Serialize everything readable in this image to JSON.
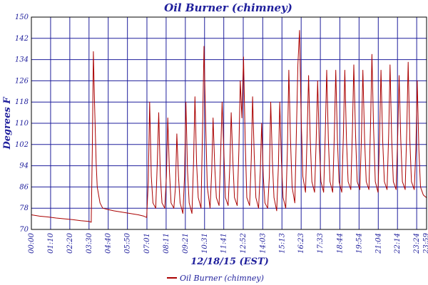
{
  "chart_data": {
    "type": "line",
    "title": "Oil Burner (chimney)",
    "xlabel": "12/18/15 (EST)",
    "ylabel": "Degrees F",
    "ylim": [
      70,
      150
    ],
    "y_ticks": [
      70,
      78,
      86,
      94,
      102,
      110,
      118,
      126,
      134,
      142,
      150
    ],
    "x_ticks": [
      "00:00",
      "01:10",
      "02:20",
      "03:30",
      "04:40",
      "05:50",
      "07:01",
      "08:11",
      "09:21",
      "10:31",
      "11:41",
      "12:52",
      "14:03",
      "15:13",
      "16:23",
      "17:33",
      "18:44",
      "19:54",
      "21:04",
      "22:14",
      "23:24",
      "23:59"
    ],
    "grid": true,
    "legend_position": "bottom",
    "colors": {
      "series": "#aa0000",
      "grid": "#1f1f9c",
      "text": "#1f1f9c",
      "axis": "#000000"
    },
    "series": [
      {
        "name": "Oil Burner (chimney)",
        "points": [
          [
            "00:00",
            75.5
          ],
          [
            "00:30",
            75
          ],
          [
            "01:00",
            74.7
          ],
          [
            "01:30",
            74.3
          ],
          [
            "02:00",
            74
          ],
          [
            "02:30",
            73.7
          ],
          [
            "03:00",
            73.3
          ],
          [
            "03:30",
            73
          ],
          [
            "03:38",
            72.7
          ],
          [
            "03:42",
            100
          ],
          [
            "03:46",
            137
          ],
          [
            "03:50",
            118
          ],
          [
            "03:56",
            95
          ],
          [
            "04:00",
            86
          ],
          [
            "04:10",
            80
          ],
          [
            "04:20",
            78
          ],
          [
            "04:40",
            77.5
          ],
          [
            "05:00",
            77
          ],
          [
            "05:30",
            76.5
          ],
          [
            "06:00",
            76
          ],
          [
            "06:30",
            75.5
          ],
          [
            "06:50",
            75
          ],
          [
            "07:00",
            74.5
          ],
          [
            "07:06",
            88
          ],
          [
            "07:11",
            118
          ],
          [
            "07:17",
            90
          ],
          [
            "07:23",
            80
          ],
          [
            "07:33",
            78
          ],
          [
            "07:39",
            96
          ],
          [
            "07:44",
            114
          ],
          [
            "07:50",
            90
          ],
          [
            "07:56",
            80
          ],
          [
            "08:06",
            78
          ],
          [
            "08:12",
            90
          ],
          [
            "08:17",
            112
          ],
          [
            "08:23",
            92
          ],
          [
            "08:29",
            80
          ],
          [
            "08:39",
            78
          ],
          [
            "08:45",
            86
          ],
          [
            "08:50",
            106
          ],
          [
            "08:56",
            90
          ],
          [
            "09:02",
            80
          ],
          [
            "09:12",
            76
          ],
          [
            "09:18",
            90
          ],
          [
            "09:23",
            118
          ],
          [
            "09:29",
            92
          ],
          [
            "09:35",
            80
          ],
          [
            "09:45",
            76
          ],
          [
            "09:51",
            96
          ],
          [
            "09:56",
            120
          ],
          [
            "10:02",
            95
          ],
          [
            "10:08",
            82
          ],
          [
            "10:18",
            78
          ],
          [
            "10:24",
            110
          ],
          [
            "10:29",
            139
          ],
          [
            "10:35",
            110
          ],
          [
            "10:41",
            86
          ],
          [
            "10:51",
            78
          ],
          [
            "10:57",
            92
          ],
          [
            "11:02",
            112
          ],
          [
            "11:08",
            94
          ],
          [
            "11:14",
            82
          ],
          [
            "11:24",
            79
          ],
          [
            "11:30",
            100
          ],
          [
            "11:35",
            118
          ],
          [
            "11:41",
            100
          ],
          [
            "11:47",
            82
          ],
          [
            "11:57",
            79
          ],
          [
            "12:03",
            94
          ],
          [
            "12:08",
            114
          ],
          [
            "12:14",
            96
          ],
          [
            "12:20",
            82
          ],
          [
            "12:30",
            79
          ],
          [
            "12:36",
            100
          ],
          [
            "12:41",
            126
          ],
          [
            "12:47",
            112
          ],
          [
            "12:53",
            135
          ],
          [
            "12:59",
            104
          ],
          [
            "13:05",
            82
          ],
          [
            "13:15",
            79
          ],
          [
            "13:21",
            96
          ],
          [
            "13:26",
            120
          ],
          [
            "13:32",
            98
          ],
          [
            "13:38",
            82
          ],
          [
            "13:48",
            78
          ],
          [
            "13:54",
            92
          ],
          [
            "13:59",
            110
          ],
          [
            "14:05",
            90
          ],
          [
            "14:11",
            80
          ],
          [
            "14:21",
            78
          ],
          [
            "14:27",
            90
          ],
          [
            "14:32",
            118
          ],
          [
            "14:38",
            96
          ],
          [
            "14:44",
            82
          ],
          [
            "14:54",
            77
          ],
          [
            "15:00",
            94
          ],
          [
            "15:05",
            118
          ],
          [
            "15:11",
            96
          ],
          [
            "15:17",
            82
          ],
          [
            "15:27",
            78
          ],
          [
            "15:33",
            100
          ],
          [
            "15:38",
            130
          ],
          [
            "15:44",
            104
          ],
          [
            "15:50",
            86
          ],
          [
            "16:00",
            80
          ],
          [
            "16:06",
            108
          ],
          [
            "16:11",
            132
          ],
          [
            "16:17",
            145
          ],
          [
            "16:23",
            112
          ],
          [
            "16:29",
            90
          ],
          [
            "16:39",
            84
          ],
          [
            "16:45",
            106
          ],
          [
            "16:50",
            128
          ],
          [
            "16:56",
            104
          ],
          [
            "17:02",
            88
          ],
          [
            "17:12",
            84
          ],
          [
            "17:18",
            104
          ],
          [
            "17:23",
            126
          ],
          [
            "17:29",
            102
          ],
          [
            "17:35",
            88
          ],
          [
            "17:45",
            84
          ],
          [
            "17:51",
            106
          ],
          [
            "17:56",
            130
          ],
          [
            "18:02",
            104
          ],
          [
            "18:08",
            88
          ],
          [
            "18:18",
            84
          ],
          [
            "18:24",
            106
          ],
          [
            "18:29",
            130
          ],
          [
            "18:35",
            104
          ],
          [
            "18:41",
            88
          ],
          [
            "18:51",
            84
          ],
          [
            "18:57",
            106
          ],
          [
            "19:02",
            130
          ],
          [
            "19:08",
            104
          ],
          [
            "19:14",
            88
          ],
          [
            "19:24",
            85
          ],
          [
            "19:30",
            108
          ],
          [
            "19:35",
            132
          ],
          [
            "19:41",
            106
          ],
          [
            "19:47",
            88
          ],
          [
            "19:57",
            85
          ],
          [
            "20:03",
            106
          ],
          [
            "20:08",
            130
          ],
          [
            "20:14",
            104
          ],
          [
            "20:20",
            88
          ],
          [
            "20:30",
            85
          ],
          [
            "20:36",
            110
          ],
          [
            "20:41",
            136
          ],
          [
            "20:47",
            108
          ],
          [
            "20:53",
            88
          ],
          [
            "21:03",
            84
          ],
          [
            "21:09",
            106
          ],
          [
            "21:14",
            130
          ],
          [
            "21:20",
            104
          ],
          [
            "21:26",
            88
          ],
          [
            "21:36",
            85
          ],
          [
            "21:42",
            106
          ],
          [
            "21:47",
            132
          ],
          [
            "21:53",
            104
          ],
          [
            "21:59",
            88
          ],
          [
            "22:09",
            85
          ],
          [
            "22:15",
            106
          ],
          [
            "22:20",
            128
          ],
          [
            "22:26",
            104
          ],
          [
            "22:32",
            88
          ],
          [
            "22:42",
            85
          ],
          [
            "22:48",
            108
          ],
          [
            "22:53",
            133
          ],
          [
            "22:59",
            104
          ],
          [
            "23:05",
            88
          ],
          [
            "23:15",
            85
          ],
          [
            "23:21",
            100
          ],
          [
            "23:26",
            126
          ],
          [
            "23:32",
            100
          ],
          [
            "23:38",
            86
          ],
          [
            "23:48",
            83
          ],
          [
            "23:59",
            82
          ]
        ]
      }
    ]
  }
}
